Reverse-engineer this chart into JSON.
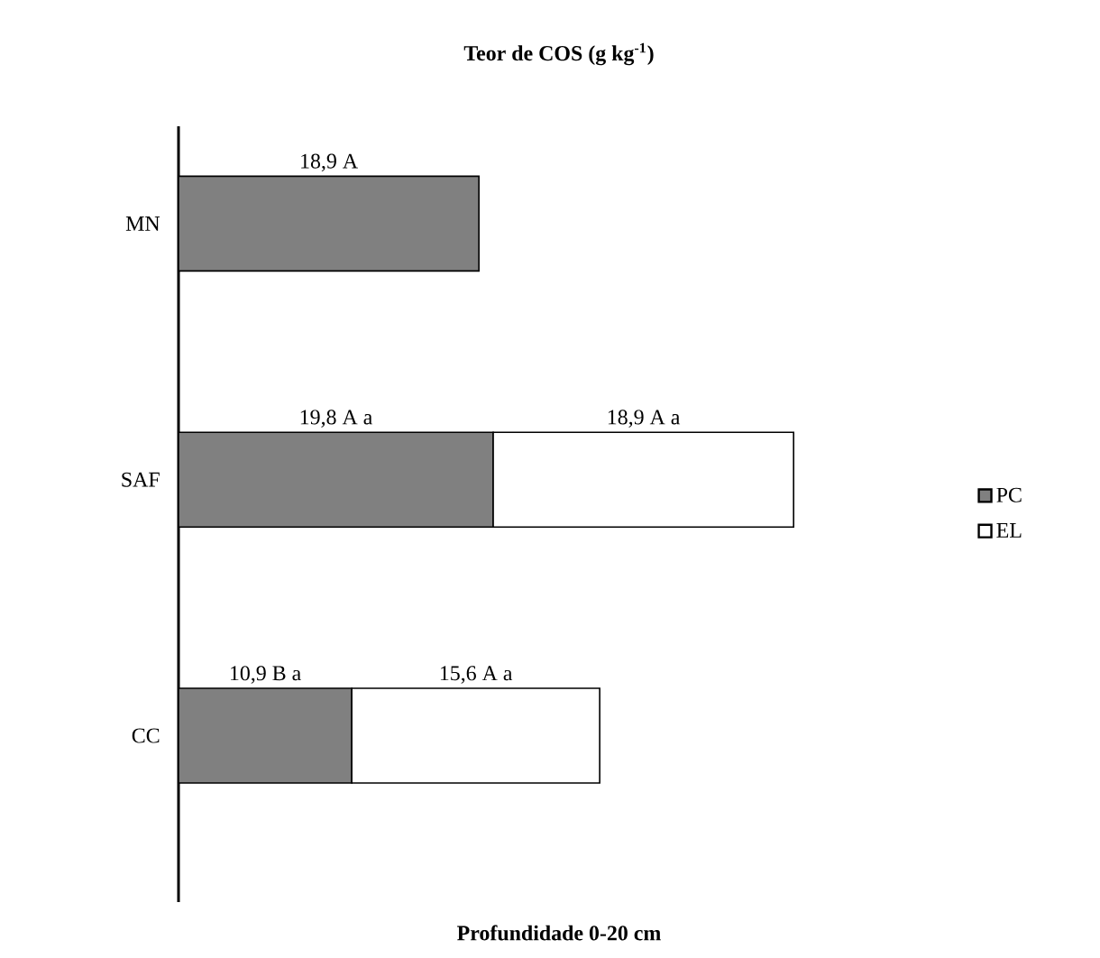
{
  "chart_data": {
    "type": "bar",
    "orientation": "horizontal",
    "stacked": true,
    "title": "Teor de COS (g kg$^{-1}$)",
    "xlabel": "Profundidade 0-20 cm",
    "categories": [
      "MN",
      "SAF",
      "CC"
    ],
    "series": [
      {
        "name": "PC",
        "color": "#808080",
        "values": [
          18.9,
          19.8,
          10.9
        ],
        "value_labels": [
          "18,9 A",
          "19,8  A a",
          "10,9 B a"
        ]
      },
      {
        "name": "EL",
        "color": "#ffffff",
        "values": [
          null,
          18.9,
          15.6
        ],
        "value_labels": [
          null,
          "18,9 A a",
          "15,6 A a"
        ]
      }
    ],
    "legend": "right",
    "tick_labels": "y"
  }
}
